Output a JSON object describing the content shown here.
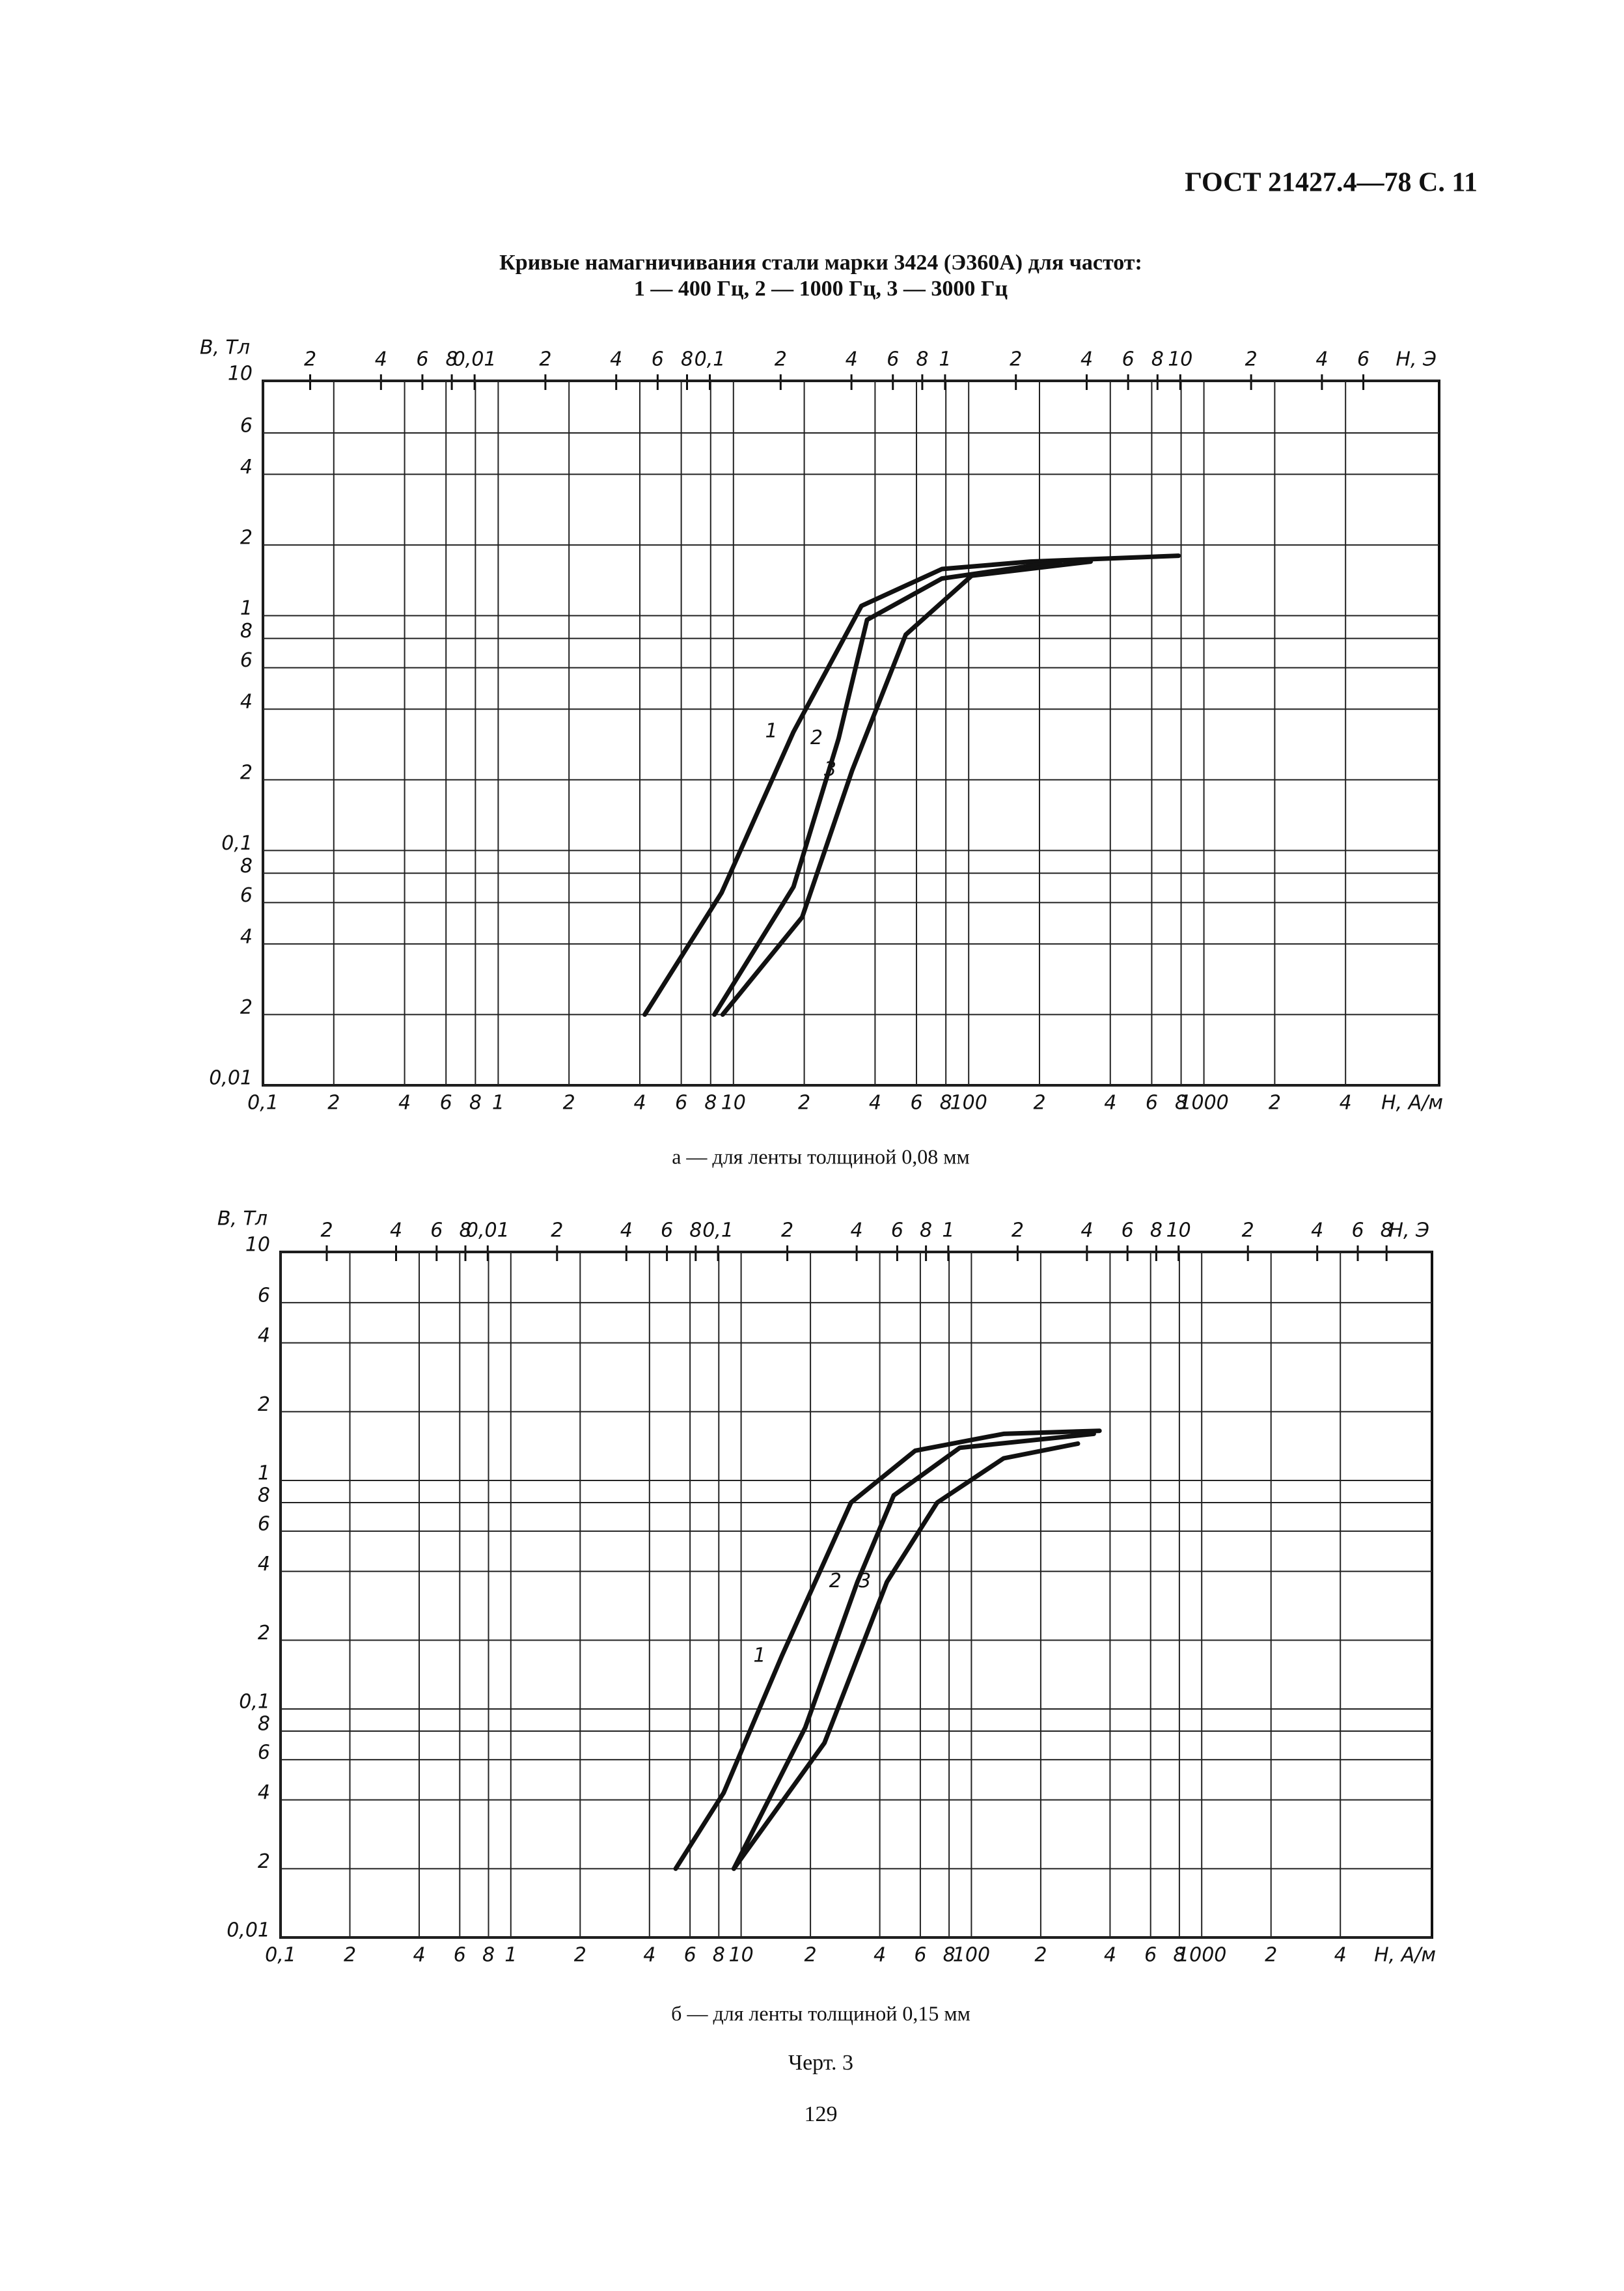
{
  "header": "ГОСТ 21427.4—78 С. 11",
  "title": [
    "Кривые намагничивания стали марки 3424 (Э360А) для частот:",
    "1 — 400 Гц, 2 — 1000 Гц, 3 — 3000 Гц"
  ],
  "chart_data": [
    {
      "type": "line",
      "caption": "а — для ленты толщиной 0,08 мм",
      "ylabel": "B, Тл",
      "xlabel": "H, A/м",
      "x2label": "H, Э",
      "xscale": "log",
      "yscale": "log",
      "grid": true,
      "color": "#111111",
      "xlim": [
        0.1,
        10000
      ],
      "ylim": [
        0.01,
        10
      ],
      "x2lim": [
        0.00126,
        126
      ],
      "xticks": [
        {
          "value": 0.1,
          "label": "0,1"
        },
        {
          "value": 0.2,
          "label": "2"
        },
        {
          "value": 0.4,
          "label": "4"
        },
        {
          "value": 0.6,
          "label": "6"
        },
        {
          "value": 0.8,
          "label": "8"
        },
        1,
        2,
        4,
        6,
        8,
        10,
        {
          "value": 20,
          "label": "2"
        },
        {
          "value": 40,
          "label": "4"
        },
        {
          "value": 60,
          "label": "6"
        },
        {
          "value": 80,
          "label": "8"
        },
        100,
        {
          "value": 200,
          "label": "2"
        },
        {
          "value": 400,
          "label": "4"
        },
        {
          "value": 600,
          "label": "6"
        },
        {
          "value": 800,
          "label": "8"
        },
        1000,
        {
          "value": 2000,
          "label": "2"
        },
        {
          "value": 4000,
          "label": "4"
        }
      ],
      "yticks": [
        {
          "value": 0.01,
          "label": "0,01"
        },
        {
          "value": 0.02,
          "label": "2"
        },
        {
          "value": 0.04,
          "label": "4"
        },
        {
          "value": 0.06,
          "label": "6"
        },
        {
          "value": 0.08,
          "label": "8"
        },
        {
          "value": 0.1,
          "label": "0,1"
        },
        {
          "value": 0.2,
          "label": "2"
        },
        {
          "value": 0.4,
          "label": "4"
        },
        {
          "value": 0.6,
          "label": "6"
        },
        {
          "value": 0.8,
          "label": "8"
        },
        1,
        2,
        4,
        6,
        10
      ],
      "x2ticks": [
        {
          "value": 0.002,
          "label": "2"
        },
        {
          "value": 0.004,
          "label": "4"
        },
        {
          "value": 0.006,
          "label": "6"
        },
        {
          "value": 0.008,
          "label": "8"
        },
        {
          "value": 0.01,
          "label": "0,01"
        },
        {
          "value": 0.02,
          "label": "2"
        },
        {
          "value": 0.04,
          "label": "4"
        },
        {
          "value": 0.06,
          "label": "6"
        },
        {
          "value": 0.08,
          "label": "8"
        },
        {
          "value": 0.1,
          "label": "0,1"
        },
        {
          "value": 0.2,
          "label": "2"
        },
        {
          "value": 0.4,
          "label": "4"
        },
        {
          "value": 0.6,
          "label": "6"
        },
        {
          "value": 0.8,
          "label": "8"
        },
        1,
        2,
        4,
        6,
        8,
        10,
        {
          "value": 20,
          "label": "2"
        },
        {
          "value": 40,
          "label": "4"
        },
        {
          "value": 60,
          "label": "6"
        }
      ],
      "series": [
        {
          "name": "1",
          "x": [
            4.2,
            8.9,
            18,
            35,
            77,
            183,
            780
          ],
          "values": [
            0.02,
            0.066,
            0.32,
            1.1,
            1.58,
            1.7,
            1.8
          ]
        },
        {
          "name": "2",
          "x": [
            8.3,
            18,
            28,
            37,
            77,
            245
          ],
          "values": [
            0.02,
            0.07,
            0.3,
            0.96,
            1.44,
            1.7
          ]
        },
        {
          "name": "3",
          "x": [
            9,
            19.6,
            32,
            54,
            103,
            330
          ],
          "values": [
            0.02,
            0.052,
            0.22,
            0.83,
            1.48,
            1.7
          ]
        }
      ]
    },
    {
      "type": "line",
      "caption": "б — для ленты толщиной 0,15 мм",
      "ylabel": "B, Тл",
      "xlabel": "H, A/м",
      "x2label": "H, Э",
      "xscale": "log",
      "yscale": "log",
      "grid": true,
      "color": "#111111",
      "xlim": [
        0.1,
        10000
      ],
      "ylim": [
        0.01,
        10
      ],
      "x2lim": [
        0.00126,
        126
      ],
      "xticks": [
        {
          "value": 0.1,
          "label": "0,1"
        },
        {
          "value": 0.2,
          "label": "2"
        },
        {
          "value": 0.4,
          "label": "4"
        },
        {
          "value": 0.6,
          "label": "6"
        },
        {
          "value": 0.8,
          "label": "8"
        },
        1,
        2,
        4,
        6,
        8,
        10,
        {
          "value": 20,
          "label": "2"
        },
        {
          "value": 40,
          "label": "4"
        },
        {
          "value": 60,
          "label": "6"
        },
        {
          "value": 80,
          "label": "8"
        },
        100,
        {
          "value": 200,
          "label": "2"
        },
        {
          "value": 400,
          "label": "4"
        },
        {
          "value": 600,
          "label": "6"
        },
        {
          "value": 800,
          "label": "8"
        },
        1000,
        {
          "value": 2000,
          "label": "2"
        },
        {
          "value": 4000,
          "label": "4"
        }
      ],
      "yticks": [
        {
          "value": 0.01,
          "label": "0,01"
        },
        {
          "value": 0.02,
          "label": "2"
        },
        {
          "value": 0.04,
          "label": "4"
        },
        {
          "value": 0.06,
          "label": "6"
        },
        {
          "value": 0.08,
          "label": "8"
        },
        {
          "value": 0.1,
          "label": "0,1"
        },
        {
          "value": 0.2,
          "label": "2"
        },
        {
          "value": 0.4,
          "label": "4"
        },
        {
          "value": 0.6,
          "label": "6"
        },
        {
          "value": 0.8,
          "label": "8"
        },
        1,
        2,
        4,
        6,
        10
      ],
      "x2ticks": [
        {
          "value": 0.002,
          "label": "2"
        },
        {
          "value": 0.004,
          "label": "4"
        },
        {
          "value": 0.006,
          "label": "6"
        },
        {
          "value": 0.008,
          "label": "8"
        },
        {
          "value": 0.01,
          "label": "0,01"
        },
        {
          "value": 0.02,
          "label": "2"
        },
        {
          "value": 0.04,
          "label": "4"
        },
        {
          "value": 0.06,
          "label": "6"
        },
        {
          "value": 0.08,
          "label": "8"
        },
        {
          "value": 0.1,
          "label": "0,1"
        },
        {
          "value": 0.2,
          "label": "2"
        },
        {
          "value": 0.4,
          "label": "4"
        },
        {
          "value": 0.6,
          "label": "6"
        },
        {
          "value": 0.8,
          "label": "8"
        },
        1,
        2,
        4,
        6,
        8,
        10,
        {
          "value": 20,
          "label": "2"
        },
        {
          "value": 40,
          "label": "4"
        },
        {
          "value": 60,
          "label": "6"
        },
        {
          "value": 80,
          "label": "8"
        }
      ],
      "series": [
        {
          "name": "1",
          "x": [
            5.2,
            8.4,
            15,
            30,
            57,
            138,
            360
          ],
          "values": [
            0.02,
            0.043,
            0.17,
            0.8,
            1.35,
            1.6,
            1.65
          ]
        },
        {
          "name": "2",
          "x": [
            9.3,
            19,
            32,
            46,
            89,
            340
          ],
          "values": [
            0.02,
            0.083,
            0.36,
            0.86,
            1.39,
            1.6
          ]
        },
        {
          "name": "3",
          "x": [
            9.3,
            23,
            43,
            71,
            138,
            290
          ],
          "values": [
            0.02,
            0.071,
            0.36,
            0.8,
            1.25,
            1.45
          ]
        }
      ]
    }
  ],
  "figure_label": "Черт. 3",
  "page_number": "129"
}
